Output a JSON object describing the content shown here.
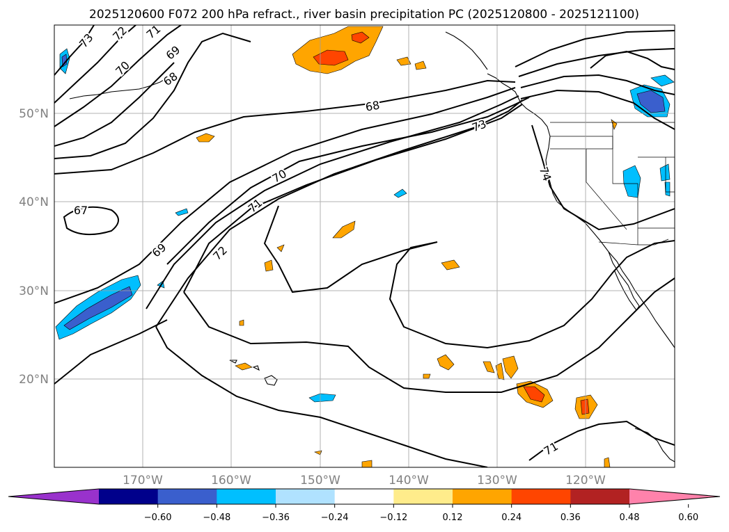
{
  "title": "2025120600 F072 200 hPa refract., river basin precipitation PC (2025120800 - 2025121100)",
  "map": {
    "projection": "cylindrical",
    "lon_range": [
      -180,
      -110
    ],
    "lat_range": [
      10,
      60
    ],
    "lat_labels": [
      "50°N",
      "40°N",
      "30°N",
      "20°N"
    ],
    "lon_labels": [
      "170°W",
      "160°W",
      "150°W",
      "140°W",
      "130°W",
      "120°W"
    ],
    "contour_labels": [
      "73",
      "72",
      "71",
      "70",
      "69",
      "68",
      "68",
      "73",
      "70",
      "71",
      "72",
      "69",
      "67",
      "74",
      "71"
    ]
  },
  "colorbar": {
    "ticks": [
      "−0.60",
      "−0.48",
      "−0.36",
      "−0.24",
      "−0.12",
      "0.12",
      "0.24",
      "0.36",
      "0.48",
      "0.60"
    ],
    "colors": [
      "#9932cc",
      "#00008b",
      "#3a5fcd",
      "#00bfff",
      "#b0e2ff",
      "#ffffff",
      "#ffec8b",
      "#ffa500",
      "#ff4500",
      "#b22222",
      "#ff82ab"
    ],
    "extend": "both"
  }
}
